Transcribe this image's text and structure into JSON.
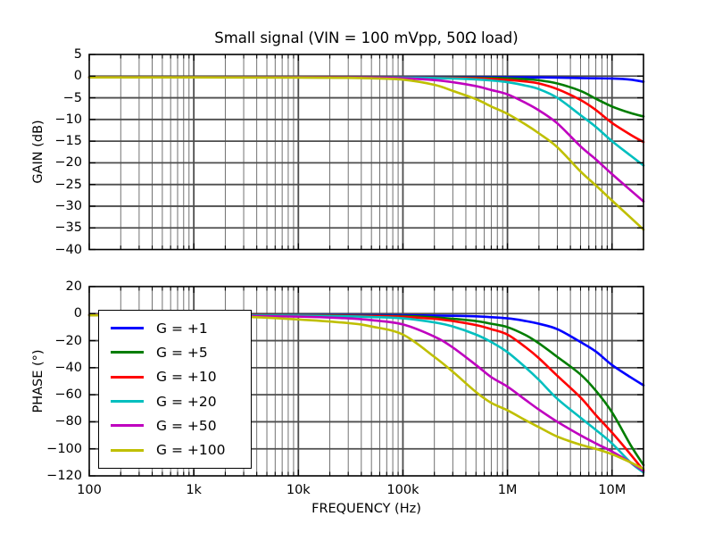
{
  "title": "Small signal (VIN = 100 mVpp, 50Ω load)",
  "xlabel": "FREQUENCY (Hz)",
  "style": {
    "background": "#ffffff",
    "spine_color": "#000000",
    "grid_major_color": "#4d4d4d",
    "grid_minor_color": "#636363",
    "text_color": "#000000",
    "curve_width": 2.6
  },
  "xticks": [
    {
      "value": 100,
      "label": "100"
    },
    {
      "value": 1000,
      "label": "1k"
    },
    {
      "value": 10000,
      "label": "10k"
    },
    {
      "value": 100000,
      "label": "100k"
    },
    {
      "value": 1000000,
      "label": "1M"
    },
    {
      "value": 10000000,
      "label": "10M"
    }
  ],
  "chart_data": [
    {
      "type": "line",
      "id": "gain",
      "ylabel": "GAIN (dB)",
      "xscale": "log",
      "xlim": [
        100,
        20000000
      ],
      "ylim": [
        -40,
        5
      ],
      "grid": "x-major+minor, y-major",
      "legend_position": "none",
      "yticks": [
        {
          "value": 5,
          "label": "5"
        },
        {
          "value": 0,
          "label": "0"
        },
        {
          "value": -5,
          "label": "−5"
        },
        {
          "value": -10,
          "label": "−10"
        },
        {
          "value": -15,
          "label": "−15"
        },
        {
          "value": -20,
          "label": "−20"
        },
        {
          "value": -25,
          "label": "−25"
        },
        {
          "value": -30,
          "label": "−30"
        },
        {
          "value": -35,
          "label": "−35"
        },
        {
          "value": -40,
          "label": "−40"
        }
      ],
      "series": [
        {
          "label": "G = +1",
          "color": "#0000ff",
          "points": [
            [
              100,
              -0.2
            ],
            [
              1000,
              -0.2
            ],
            [
              10000,
              -0.2
            ],
            [
              100000,
              -0.2
            ],
            [
              300000,
              -0.2
            ],
            [
              1000000,
              -0.25
            ],
            [
              2000000,
              -0.3
            ],
            [
              3000000,
              -0.35
            ],
            [
              5000000,
              -0.45
            ],
            [
              7000000,
              -0.5
            ],
            [
              10000000,
              -0.55
            ],
            [
              15000000,
              -0.8
            ],
            [
              20000000,
              -1.3
            ]
          ]
        },
        {
          "label": "G = +5",
          "color": "#007d00",
          "points": [
            [
              100,
              -0.25
            ],
            [
              1000,
              -0.25
            ],
            [
              10000,
              -0.25
            ],
            [
              100000,
              -0.25
            ],
            [
              300000,
              -0.3
            ],
            [
              500000,
              -0.35
            ],
            [
              700000,
              -0.4
            ],
            [
              1000000,
              -0.5
            ],
            [
              1500000,
              -0.7
            ],
            [
              2000000,
              -0.95
            ],
            [
              3000000,
              -1.7
            ],
            [
              5000000,
              -3.4
            ],
            [
              7000000,
              -5.2
            ],
            [
              10000000,
              -7.0
            ],
            [
              15000000,
              -8.5
            ],
            [
              20000000,
              -9.3
            ]
          ]
        },
        {
          "label": "G = +10",
          "color": "#ff0000",
          "points": [
            [
              100,
              -0.25
            ],
            [
              1000,
              -0.25
            ],
            [
              10000,
              -0.25
            ],
            [
              100000,
              -0.3
            ],
            [
              300000,
              -0.4
            ],
            [
              500000,
              -0.5
            ],
            [
              700000,
              -0.65
            ],
            [
              1000000,
              -0.85
            ],
            [
              1500000,
              -1.25
            ],
            [
              2000000,
              -1.7
            ],
            [
              3000000,
              -3.0
            ],
            [
              5000000,
              -5.5
            ],
            [
              7000000,
              -7.8
            ],
            [
              10000000,
              -10.8
            ],
            [
              15000000,
              -13.5
            ],
            [
              20000000,
              -15.2
            ]
          ]
        },
        {
          "label": "G = +20",
          "color": "#00bfbf",
          "points": [
            [
              100,
              -0.3
            ],
            [
              1000,
              -0.3
            ],
            [
              10000,
              -0.3
            ],
            [
              100000,
              -0.35
            ],
            [
              200000,
              -0.45
            ],
            [
              300000,
              -0.55
            ],
            [
              500000,
              -0.75
            ],
            [
              700000,
              -1.0
            ],
            [
              1000000,
              -1.4
            ],
            [
              1500000,
              -2.2
            ],
            [
              2000000,
              -3.0
            ],
            [
              3000000,
              -5.0
            ],
            [
              5000000,
              -9.0
            ],
            [
              7000000,
              -11.7
            ],
            [
              10000000,
              -15.0
            ],
            [
              15000000,
              -18.3
            ],
            [
              20000000,
              -20.6
            ]
          ]
        },
        {
          "label": "G = +50",
          "color": "#bf00bf",
          "points": [
            [
              100,
              -0.3
            ],
            [
              1000,
              -0.3
            ],
            [
              10000,
              -0.3
            ],
            [
              50000,
              -0.35
            ],
            [
              100000,
              -0.5
            ],
            [
              200000,
              -0.9
            ],
            [
              300000,
              -1.4
            ],
            [
              500000,
              -2.3
            ],
            [
              700000,
              -3.2
            ],
            [
              1000000,
              -4.2
            ],
            [
              1500000,
              -6.2
            ],
            [
              2000000,
              -7.9
            ],
            [
              3000000,
              -10.9
            ],
            [
              5000000,
              -16.2
            ],
            [
              7000000,
              -19.2
            ],
            [
              10000000,
              -22.6
            ],
            [
              15000000,
              -26.3
            ],
            [
              20000000,
              -28.9
            ]
          ]
        },
        {
          "label": "G = +100",
          "color": "#bfbf00",
          "points": [
            [
              100,
              -0.3
            ],
            [
              1000,
              -0.3
            ],
            [
              10000,
              -0.35
            ],
            [
              30000,
              -0.4
            ],
            [
              50000,
              -0.5
            ],
            [
              100000,
              -0.8
            ],
            [
              200000,
              -2.0
            ],
            [
              300000,
              -3.4
            ],
            [
              500000,
              -5.3
            ],
            [
              700000,
              -7.0
            ],
            [
              1000000,
              -8.7
            ],
            [
              1500000,
              -11.2
            ],
            [
              2000000,
              -13.2
            ],
            [
              3000000,
              -16.4
            ],
            [
              5000000,
              -22.0
            ],
            [
              7000000,
              -25.2
            ],
            [
              10000000,
              -28.7
            ],
            [
              15000000,
              -32.6
            ],
            [
              20000000,
              -35.4
            ]
          ]
        }
      ]
    },
    {
      "type": "line",
      "id": "phase",
      "ylabel": "PHASE (°)",
      "xscale": "log",
      "xlim": [
        100,
        20000000
      ],
      "ylim": [
        -120,
        20
      ],
      "grid": "x-major+minor, y-major",
      "legend_position": "upper-left",
      "yticks": [
        {
          "value": 20,
          "label": "20"
        },
        {
          "value": 0,
          "label": "0"
        },
        {
          "value": -20,
          "label": "−20"
        },
        {
          "value": -40,
          "label": "−40"
        },
        {
          "value": -60,
          "label": "−60"
        },
        {
          "value": -80,
          "label": "−80"
        },
        {
          "value": -100,
          "label": "−100"
        },
        {
          "value": -120,
          "label": "−120"
        }
      ],
      "series": [
        {
          "label": "G = +1",
          "color": "#0000ff",
          "points": [
            [
              100,
              -1
            ],
            [
              1000,
              -1
            ],
            [
              10000,
              -1
            ],
            [
              100000,
              -1.2
            ],
            [
              300000,
              -1.6
            ],
            [
              500000,
              -2
            ],
            [
              1000000,
              -3.5
            ],
            [
              1500000,
              -5.5
            ],
            [
              2000000,
              -7.5
            ],
            [
              3000000,
              -11.5
            ],
            [
              5000000,
              -21
            ],
            [
              7000000,
              -28
            ],
            [
              10000000,
              -38
            ],
            [
              15000000,
              -47
            ],
            [
              20000000,
              -53
            ]
          ]
        },
        {
          "label": "G = +5",
          "color": "#007d00",
          "points": [
            [
              100,
              -1
            ],
            [
              1000,
              -1
            ],
            [
              10000,
              -1.2
            ],
            [
              100000,
              -1.8
            ],
            [
              200000,
              -2.8
            ],
            [
              300000,
              -3.8
            ],
            [
              500000,
              -5.5
            ],
            [
              700000,
              -7.5
            ],
            [
              1000000,
              -10
            ],
            [
              1500000,
              -16
            ],
            [
              2000000,
              -22
            ],
            [
              3000000,
              -32
            ],
            [
              5000000,
              -45
            ],
            [
              7000000,
              -57
            ],
            [
              10000000,
              -73
            ],
            [
              15000000,
              -97
            ],
            [
              20000000,
              -112
            ]
          ]
        },
        {
          "label": "G = +10",
          "color": "#ff0000",
          "points": [
            [
              100,
              -1
            ],
            [
              1000,
              -1
            ],
            [
              10000,
              -1.3
            ],
            [
              50000,
              -1.8
            ],
            [
              100000,
              -2.3
            ],
            [
              200000,
              -3.8
            ],
            [
              300000,
              -5.5
            ],
            [
              500000,
              -8.5
            ],
            [
              700000,
              -11.5
            ],
            [
              1000000,
              -15.5
            ],
            [
              1500000,
              -25
            ],
            [
              2000000,
              -33
            ],
            [
              3000000,
              -46
            ],
            [
              5000000,
              -62
            ],
            [
              7000000,
              -75
            ],
            [
              10000000,
              -88
            ],
            [
              15000000,
              -104
            ],
            [
              20000000,
              -116
            ]
          ]
        },
        {
          "label": "G = +20",
          "color": "#00bfbf",
          "points": [
            [
              100,
              -1
            ],
            [
              1000,
              -1.1
            ],
            [
              10000,
              -1.5
            ],
            [
              30000,
              -2
            ],
            [
              50000,
              -2.5
            ],
            [
              100000,
              -3.5
            ],
            [
              200000,
              -6.5
            ],
            [
              300000,
              -9.5
            ],
            [
              500000,
              -15.5
            ],
            [
              700000,
              -21
            ],
            [
              1000000,
              -28.5
            ],
            [
              1500000,
              -40
            ],
            [
              2000000,
              -49
            ],
            [
              3000000,
              -63
            ],
            [
              5000000,
              -77
            ],
            [
              7000000,
              -86
            ],
            [
              10000000,
              -96
            ],
            [
              15000000,
              -110
            ],
            [
              20000000,
              -117.5
            ]
          ]
        },
        {
          "label": "G = +50",
          "color": "#bf00bf",
          "points": [
            [
              100,
              -1
            ],
            [
              1000,
              -1.3
            ],
            [
              10000,
              -2.2
            ],
            [
              30000,
              -3.5
            ],
            [
              50000,
              -4.8
            ],
            [
              100000,
              -8
            ],
            [
              200000,
              -17
            ],
            [
              300000,
              -25
            ],
            [
              500000,
              -38
            ],
            [
              700000,
              -47
            ],
            [
              1000000,
              -54
            ],
            [
              1500000,
              -64
            ],
            [
              2000000,
              -71
            ],
            [
              3000000,
              -80
            ],
            [
              5000000,
              -90
            ],
            [
              7000000,
              -96
            ],
            [
              10000000,
              -102
            ],
            [
              15000000,
              -110
            ],
            [
              20000000,
              -116.5
            ]
          ]
        },
        {
          "label": "G = +100",
          "color": "#bfbf00",
          "points": [
            [
              100,
              -1.2
            ],
            [
              1000,
              -1.8
            ],
            [
              3000,
              -2.3
            ],
            [
              10000,
              -4.3
            ],
            [
              30000,
              -7
            ],
            [
              50000,
              -9.5
            ],
            [
              100000,
              -15.5
            ],
            [
              200000,
              -32
            ],
            [
              300000,
              -43
            ],
            [
              500000,
              -58
            ],
            [
              700000,
              -66
            ],
            [
              1000000,
              -71.5
            ],
            [
              1500000,
              -79
            ],
            [
              2000000,
              -84
            ],
            [
              3000000,
              -91
            ],
            [
              5000000,
              -97
            ],
            [
              7000000,
              -100
            ],
            [
              10000000,
              -104
            ],
            [
              15000000,
              -110
            ],
            [
              20000000,
              -115
            ]
          ]
        }
      ]
    }
  ]
}
